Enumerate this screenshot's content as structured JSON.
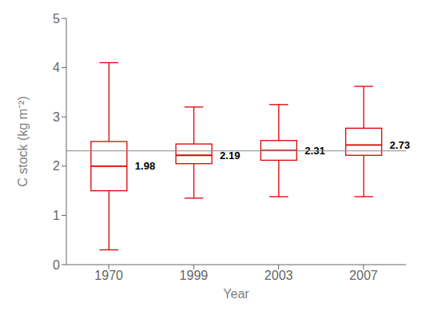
{
  "chart_data": {
    "type": "box",
    "categories": [
      "1970",
      "1999",
      "2003",
      "2007"
    ],
    "xlabel": "Year",
    "ylabel": "C stock (kg m⁻²)",
    "ylim": [
      0,
      5
    ],
    "yticks": [
      0,
      1,
      2,
      3,
      4,
      5
    ],
    "color": "#dd0000",
    "grid": false,
    "boxes": [
      {
        "whisker_low": 0.3,
        "q1": 1.5,
        "median": 2.0,
        "q3": 2.5,
        "whisker_high": 4.1,
        "label": "1.98"
      },
      {
        "whisker_low": 1.35,
        "q1": 2.05,
        "median": 2.22,
        "q3": 2.45,
        "whisker_high": 3.2,
        "label": "2.19"
      },
      {
        "whisker_low": 1.38,
        "q1": 2.12,
        "median": 2.32,
        "q3": 2.52,
        "whisker_high": 3.25,
        "label": "2.31"
      },
      {
        "whisker_low": 1.38,
        "q1": 2.22,
        "median": 2.43,
        "q3": 2.77,
        "whisker_high": 3.62,
        "label": "2.73"
      }
    ],
    "reference_lines": [
      {
        "y": 2.31,
        "color": "#888888"
      }
    ]
  }
}
